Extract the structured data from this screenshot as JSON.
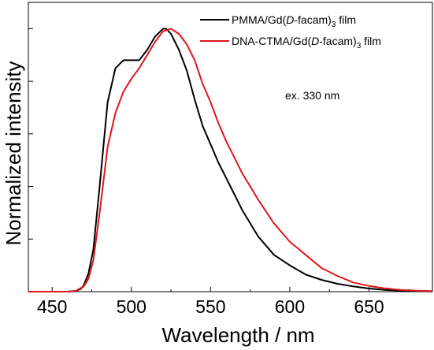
{
  "chart_data": {
    "type": "line",
    "title": "",
    "xlabel": "Wavelength / nm",
    "ylabel": "Normalized intensity",
    "xlim": [
      435,
      690
    ],
    "ylim": [
      0,
      1.1
    ],
    "xticks": [
      450,
      500,
      550,
      600,
      650
    ],
    "yticks_unlabeled": [
      0.2,
      0.4,
      0.6,
      0.8,
      1.0
    ],
    "grid": false,
    "legend_position": "top-right",
    "annotation": "ex. 330 nm",
    "series": [
      {
        "name": "PMMA/Gd(D-facam)3 film",
        "legend_prefix": "PMMA/Gd(",
        "legend_italic": "D",
        "legend_mid": "-facam)",
        "legend_sub": "3",
        "legend_suffix": " film",
        "color": "#000000",
        "x": [
          435,
          460,
          465,
          468,
          470,
          473,
          476,
          480,
          485,
          490,
          495,
          500,
          505,
          510,
          515,
          520,
          522,
          525,
          530,
          535,
          540,
          545,
          550,
          555,
          560,
          570,
          580,
          590,
          600,
          610,
          620,
          630,
          640,
          650,
          660,
          670,
          680,
          690
        ],
        "y": [
          0,
          0,
          0.003,
          0.01,
          0.025,
          0.07,
          0.16,
          0.4,
          0.72,
          0.85,
          0.88,
          0.88,
          0.88,
          0.92,
          0.97,
          1.0,
          1.0,
          0.98,
          0.92,
          0.84,
          0.73,
          0.63,
          0.56,
          0.49,
          0.43,
          0.31,
          0.21,
          0.14,
          0.1,
          0.065,
          0.045,
          0.03,
          0.02,
          0.012,
          0.007,
          0.004,
          0.002,
          0.001
        ]
      },
      {
        "name": "DNA-CTMA/Gd(D-facam)3 film",
        "legend_prefix": "DNA-CTMA/Gd(",
        "legend_italic": "D",
        "legend_mid": "-facam)",
        "legend_sub": "3",
        "legend_suffix": " film",
        "color": "#e0161b",
        "x": [
          435,
          460,
          465,
          470,
          473,
          476,
          480,
          485,
          490,
          495,
          500,
          505,
          510,
          515,
          520,
          525,
          530,
          535,
          540,
          545,
          550,
          555,
          560,
          570,
          580,
          590,
          600,
          610,
          620,
          630,
          640,
          650,
          660,
          670,
          680,
          690
        ],
        "y": [
          0,
          0,
          0.003,
          0.02,
          0.05,
          0.12,
          0.3,
          0.55,
          0.68,
          0.76,
          0.81,
          0.85,
          0.9,
          0.95,
          0.99,
          1.0,
          0.98,
          0.94,
          0.88,
          0.79,
          0.72,
          0.64,
          0.57,
          0.45,
          0.35,
          0.26,
          0.19,
          0.14,
          0.09,
          0.06,
          0.035,
          0.022,
          0.013,
          0.007,
          0.004,
          0.002
        ]
      }
    ]
  }
}
